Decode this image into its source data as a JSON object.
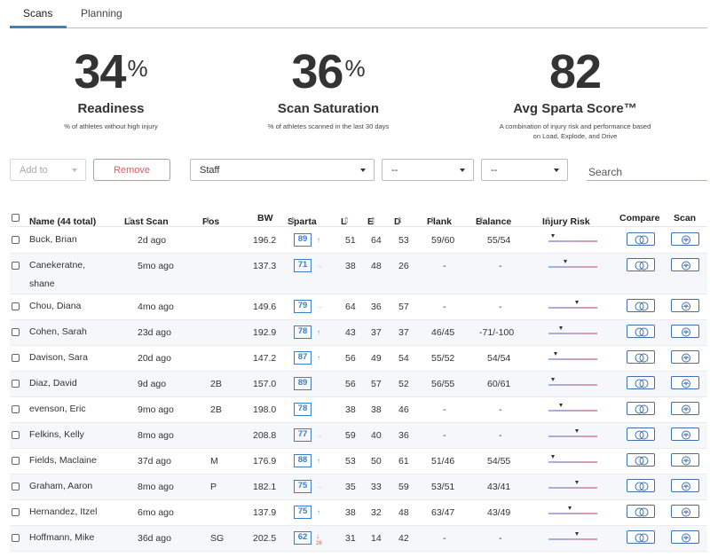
{
  "tabs": [
    {
      "label": "Scans",
      "active": true
    },
    {
      "label": "Planning",
      "active": false
    }
  ],
  "stats": [
    {
      "value": "34",
      "unit": "%",
      "label": "Readiness",
      "desc": "% of athletes without high injury"
    },
    {
      "value": "36",
      "unit": "%",
      "label": "Scan Saturation",
      "desc": "% of athletes scanned in the last 30 days"
    },
    {
      "value": "82",
      "unit": "",
      "label": "Avg Sparta Score™",
      "desc": "A combination of injury risk and performance based on Load, Explode, and Drive"
    }
  ],
  "filters": {
    "add_to": "Add to",
    "remove": "Remove",
    "group": "Staff",
    "filter2": "--",
    "filter3": "--",
    "search_placeholder": "Search"
  },
  "table": {
    "headers": {
      "name": "Name (44 total)",
      "last_scan": "Last Scan",
      "pos": "Pos",
      "bw": "BW",
      "sparta": "Sparta",
      "l": "L",
      "e": "E",
      "d": "D",
      "plank": "Plank",
      "balance": "Balance",
      "injury_risk": "Injury Risk",
      "compare": "Compare",
      "scan": "Scan"
    },
    "rows": [
      {
        "name": "Buck, Brian",
        "last_scan": "2d ago",
        "pos": "",
        "bw": "196.2",
        "sparta": "89",
        "trend": "up",
        "trend_val": "",
        "l": "51",
        "e": "64",
        "d": "53",
        "plank": "59/60",
        "balance": "55/54",
        "risk": 0.05
      },
      {
        "name": "Canekeratne, shane",
        "last_scan": "5mo ago",
        "pos": "",
        "bw": "137.3",
        "sparta": "71",
        "trend": "flat",
        "trend_val": "",
        "l": "38",
        "e": "48",
        "d": "26",
        "plank": "-",
        "balance": "-",
        "risk": 0.3
      },
      {
        "name": "Chou, Diana",
        "last_scan": "4mo ago",
        "pos": "",
        "bw": "149.6",
        "sparta": "79",
        "trend": "flat",
        "trend_val": "",
        "l": "64",
        "e": "36",
        "d": "57",
        "plank": "-",
        "balance": "-",
        "risk": 0.55
      },
      {
        "name": "Cohen, Sarah",
        "last_scan": "23d ago",
        "pos": "",
        "bw": "192.9",
        "sparta": "78",
        "trend": "up",
        "trend_val": "",
        "l": "43",
        "e": "37",
        "d": "37",
        "plank": "46/45",
        "balance": "-71/-100",
        "risk": 0.22
      },
      {
        "name": "Davison, Sara",
        "last_scan": "20d ago",
        "pos": "",
        "bw": "147.2",
        "sparta": "87",
        "trend": "up",
        "trend_val": "",
        "l": "56",
        "e": "49",
        "d": "54",
        "plank": "55/52",
        "balance": "54/54",
        "risk": 0.1
      },
      {
        "name": "Diaz, David",
        "last_scan": "9d ago",
        "pos": "2B",
        "bw": "157.0",
        "sparta": "89",
        "trend": "none",
        "trend_val": "",
        "l": "56",
        "e": "57",
        "d": "52",
        "plank": "56/55",
        "balance": "60/61",
        "risk": 0.05
      },
      {
        "name": "evenson, Eric",
        "last_scan": "9mo ago",
        "pos": "2B",
        "bw": "198.0",
        "sparta": "78",
        "trend": "none",
        "trend_val": "",
        "l": "38",
        "e": "38",
        "d": "46",
        "plank": "-",
        "balance": "-",
        "risk": 0.22
      },
      {
        "name": "Felkins, Kelly",
        "last_scan": "8mo ago",
        "pos": "",
        "bw": "208.8",
        "sparta": "77",
        "trend": "flat",
        "trend_val": "",
        "l": "59",
        "e": "40",
        "d": "36",
        "plank": "-",
        "balance": "-",
        "risk": 0.55
      },
      {
        "name": "Fields, Maclaine",
        "last_scan": "37d ago",
        "pos": "M",
        "bw": "176.9",
        "sparta": "88",
        "trend": "up",
        "trend_val": "",
        "l": "53",
        "e": "50",
        "d": "61",
        "plank": "51/46",
        "balance": "54/55",
        "risk": 0.05
      },
      {
        "name": "Graham, Aaron",
        "last_scan": "8mo ago",
        "pos": "P",
        "bw": "182.1",
        "sparta": "75",
        "trend": "flat",
        "trend_val": "",
        "l": "35",
        "e": "33",
        "d": "59",
        "plank": "53/51",
        "balance": "43/41",
        "risk": 0.55
      },
      {
        "name": "Hernandez, Itzel",
        "last_scan": "6mo ago",
        "pos": "",
        "bw": "137.9",
        "sparta": "75",
        "trend": "up",
        "trend_val": "",
        "l": "38",
        "e": "32",
        "d": "48",
        "plank": "63/47",
        "balance": "43/49",
        "risk": 0.4
      },
      {
        "name": "Hoffmann, Mike",
        "last_scan": "36d ago",
        "pos": "SG",
        "bw": "202.5",
        "sparta": "62",
        "trend": "down",
        "trend_val": "26",
        "l": "31",
        "e": "14",
        "d": "42",
        "plank": "-",
        "balance": "-",
        "risk": 0.55
      }
    ]
  },
  "colors": {
    "accent": "#3b82c4",
    "remove": "#e05a60",
    "search_underline": "#f0a940",
    "trend_up": "#46b07a",
    "trend_down": "#d9534f"
  },
  "icons": {
    "compare": "overlapping-circles-icon",
    "scan": "waveform-icon"
  }
}
